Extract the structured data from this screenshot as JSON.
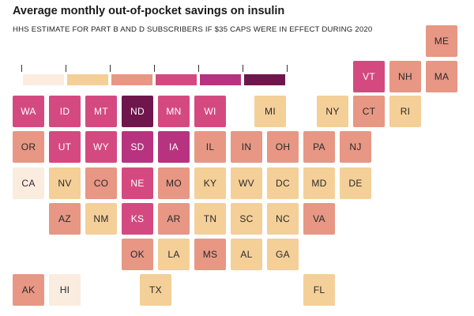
{
  "title": "Average monthly out-of-pocket savings on insulin",
  "subtitle": "HHS ESTIMATE FOR PART B AND D SUBSCRIBERS IF $35 CAPS WERE IN EFFECT DURING 2020",
  "colors": {
    "c1": "#fbece0",
    "c2": "#f4cf98",
    "c3": "#e79784",
    "c4": "#d44a80",
    "c5": "#b8337f",
    "c6": "#6f164c"
  },
  "legend": {
    "swatch_colors": [
      "#fbece0",
      "#f4cf98",
      "#e79784",
      "#d44a80",
      "#b8337f",
      "#6f164c"
    ]
  },
  "map_data": {
    "type": "tile-grid",
    "states": [
      {
        "abbr": "ME",
        "level": 3
      },
      {
        "abbr": "VT",
        "level": 4
      },
      {
        "abbr": "NH",
        "level": 3
      },
      {
        "abbr": "MA",
        "level": 3
      },
      {
        "abbr": "WA",
        "level": 4
      },
      {
        "abbr": "ID",
        "level": 4
      },
      {
        "abbr": "MT",
        "level": 4
      },
      {
        "abbr": "ND",
        "level": 6
      },
      {
        "abbr": "MN",
        "level": 4
      },
      {
        "abbr": "WI",
        "level": 4
      },
      {
        "abbr": "MI",
        "level": 2
      },
      {
        "abbr": "NY",
        "level": 2
      },
      {
        "abbr": "CT",
        "level": 3
      },
      {
        "abbr": "RI",
        "level": 2
      },
      {
        "abbr": "OR",
        "level": 3
      },
      {
        "abbr": "UT",
        "level": 4
      },
      {
        "abbr": "WY",
        "level": 4
      },
      {
        "abbr": "SD",
        "level": 5
      },
      {
        "abbr": "IA",
        "level": 5
      },
      {
        "abbr": "IL",
        "level": 3
      },
      {
        "abbr": "IN",
        "level": 3
      },
      {
        "abbr": "OH",
        "level": 3
      },
      {
        "abbr": "PA",
        "level": 3
      },
      {
        "abbr": "NJ",
        "level": 3
      },
      {
        "abbr": "CA",
        "level": 1
      },
      {
        "abbr": "NV",
        "level": 2
      },
      {
        "abbr": "CO",
        "level": 3
      },
      {
        "abbr": "NE",
        "level": 4
      },
      {
        "abbr": "MO",
        "level": 3
      },
      {
        "abbr": "KY",
        "level": 2
      },
      {
        "abbr": "WV",
        "level": 2
      },
      {
        "abbr": "DC",
        "level": 2
      },
      {
        "abbr": "MD",
        "level": 2
      },
      {
        "abbr": "DE",
        "level": 2
      },
      {
        "abbr": "AZ",
        "level": 3
      },
      {
        "abbr": "NM",
        "level": 2
      },
      {
        "abbr": "KS",
        "level": 4
      },
      {
        "abbr": "AR",
        "level": 3
      },
      {
        "abbr": "TN",
        "level": 2
      },
      {
        "abbr": "SC",
        "level": 2
      },
      {
        "abbr": "NC",
        "level": 2
      },
      {
        "abbr": "VA",
        "level": 3
      },
      {
        "abbr": "OK",
        "level": 3
      },
      {
        "abbr": "LA",
        "level": 2
      },
      {
        "abbr": "MS",
        "level": 3
      },
      {
        "abbr": "AL",
        "level": 2
      },
      {
        "abbr": "GA",
        "level": 2
      },
      {
        "abbr": "AK",
        "level": 3
      },
      {
        "abbr": "HI",
        "level": 1
      },
      {
        "abbr": "TX",
        "level": 2
      },
      {
        "abbr": "FL",
        "level": 2
      }
    ]
  }
}
